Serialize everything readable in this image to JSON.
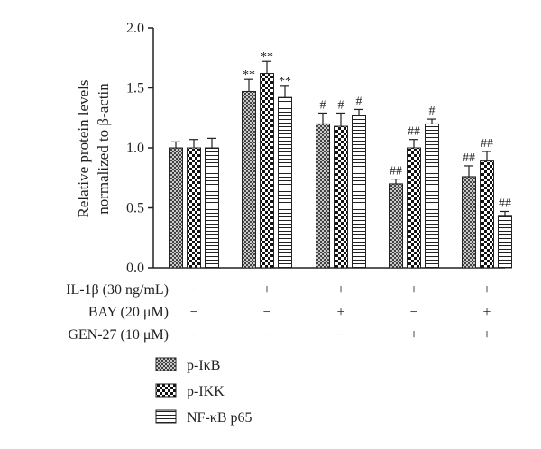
{
  "chart_data": {
    "type": "bar",
    "ylabel_line1": "Relative protein levels",
    "ylabel_line2": "normalized to β-actin",
    "ylim": [
      0,
      2.0
    ],
    "yticks": [
      "0.0",
      "0.5",
      "1.0",
      "1.5",
      "2.0"
    ],
    "ytick_values": [
      0,
      0.5,
      1.0,
      1.5,
      2.0
    ],
    "grid": false,
    "legend_position": "bottom-left",
    "groups": 5,
    "series": [
      {
        "name": "p-IκB",
        "pattern": "crosshatch-fine",
        "values": [
          1.0,
          1.47,
          1.2,
          0.7,
          0.76
        ],
        "errors": [
          0.05,
          0.1,
          0.09,
          0.04,
          0.09
        ],
        "annotations": [
          "",
          "**",
          "#",
          "##",
          "##"
        ]
      },
      {
        "name": "p-IKK",
        "pattern": "checkerboard",
        "values": [
          1.0,
          1.62,
          1.18,
          1.0,
          0.89
        ],
        "errors": [
          0.07,
          0.1,
          0.11,
          0.07,
          0.08
        ],
        "annotations": [
          "",
          "**",
          "#",
          "##",
          "##"
        ]
      },
      {
        "name": "NF-κB p65",
        "pattern": "horizontal-lines",
        "values": [
          1.0,
          1.42,
          1.27,
          1.2,
          0.43
        ],
        "errors": [
          0.08,
          0.1,
          0.05,
          0.04,
          0.04
        ],
        "annotations": [
          "",
          "**",
          "#",
          "#",
          "##"
        ]
      }
    ],
    "treatments": [
      {
        "label": "IL-1β (30 ng/mL)",
        "signs": [
          "−",
          "+",
          "+",
          "+",
          "+"
        ]
      },
      {
        "label": "BAY (20 μM)",
        "signs": [
          "−",
          "−",
          "+",
          "−",
          "+"
        ]
      },
      {
        "label": "GEN-27 (10 μM)",
        "signs": [
          "−",
          "−",
          "−",
          "+",
          "+"
        ]
      }
    ]
  }
}
